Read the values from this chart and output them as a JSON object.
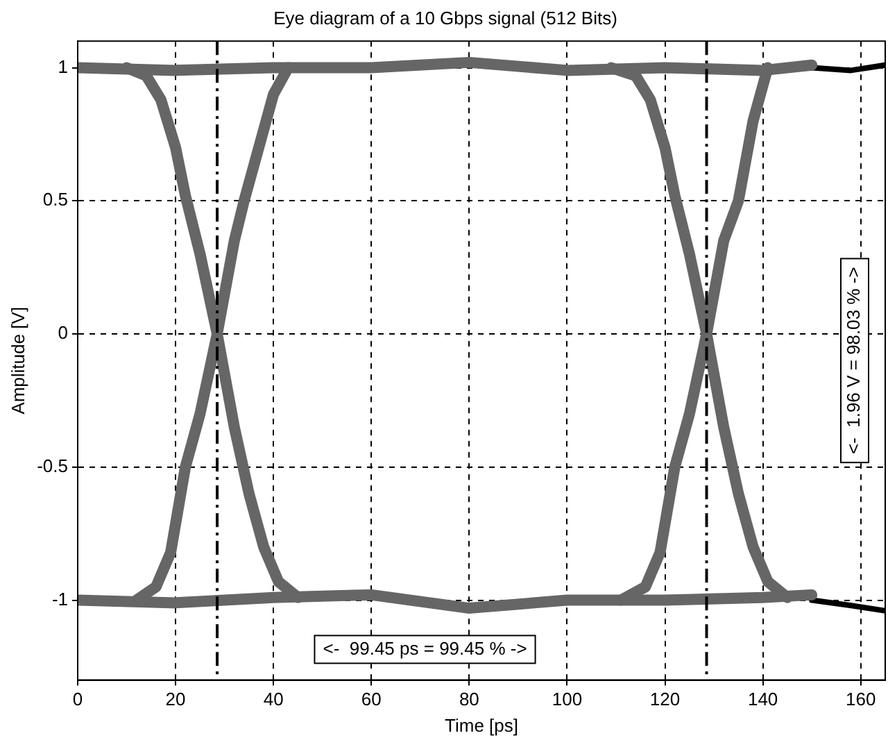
{
  "chart_data": {
    "type": "line",
    "title": "Eye diagram of a 10 Gbps signal (512 Bits)",
    "xlabel": "Time [ps]",
    "ylabel": "Amplitude [V]",
    "xlim": [
      0,
      165
    ],
    "ylim": [
      -1.3,
      1.1
    ],
    "xticks": [
      0,
      20,
      40,
      60,
      80,
      100,
      120,
      140,
      160
    ],
    "yticks": [
      -1,
      -0.5,
      0,
      0.5,
      1
    ],
    "grid": true,
    "legend": false,
    "marker": "none",
    "line_style": "solid",
    "series": [
      {
        "color": "#666666",
        "x": [
          0,
          20,
          40,
          60,
          80,
          100,
          120,
          140,
          150
        ],
        "values": [
          1,
          0.99,
          1,
          1,
          1.02,
          0.99,
          1,
          0.99,
          1.01
        ]
      },
      {
        "color": "#666666",
        "x": [
          0,
          20,
          40,
          60,
          80,
          100,
          120,
          140,
          150
        ],
        "values": [
          -1,
          -1.01,
          -0.99,
          -0.98,
          -1.03,
          -1,
          -1,
          -0.99,
          -0.98
        ]
      },
      {
        "color": "#666666",
        "x": [
          10,
          14,
          17,
          20,
          22,
          25,
          28.5,
          32,
          35,
          38,
          41,
          45
        ],
        "values": [
          1,
          0.97,
          0.88,
          0.7,
          0.52,
          0.3,
          0,
          -0.35,
          -0.6,
          -0.8,
          -0.93,
          -0.99
        ]
      },
      {
        "color": "#666666",
        "x": [
          12,
          16,
          19,
          22,
          25,
          28.5,
          32,
          34,
          37,
          40,
          43
        ],
        "values": [
          -1,
          -0.95,
          -0.82,
          -0.5,
          -0.3,
          0,
          0.35,
          0.5,
          0.7,
          0.9,
          1
        ]
      },
      {
        "color": "#666666",
        "x": [
          109,
          114,
          117,
          120,
          122,
          125,
          128.5,
          132,
          135,
          138,
          141,
          145
        ],
        "values": [
          1,
          0.97,
          0.88,
          0.7,
          0.52,
          0.3,
          0,
          -0.35,
          -0.6,
          -0.8,
          -0.93,
          -0.99
        ]
      },
      {
        "color": "#666666",
        "x": [
          111,
          116,
          119,
          122,
          125,
          128.5,
          132,
          135,
          138,
          141
        ],
        "values": [
          -1,
          -0.95,
          -0.82,
          -0.5,
          -0.3,
          0,
          0.35,
          0.5,
          0.8,
          1
        ]
      },
      {
        "color": "#000000",
        "x": [
          150,
          158,
          165
        ],
        "values": [
          1,
          0.99,
          1.01
        ]
      },
      {
        "color": "#000000",
        "x": [
          150,
          158,
          165
        ],
        "values": [
          -1,
          -1.02,
          -1.04
        ]
      }
    ],
    "ref_lines": [
      {
        "axis": "x",
        "value": 28.5,
        "color": "#000000",
        "line_style": "dashed"
      },
      {
        "axis": "x",
        "value": 128.5,
        "color": "#000000",
        "line_style": "dashed"
      }
    ],
    "annotations": [
      "<-  99.45 ps = 99.45 % ->",
      "<-  1.96 V = 98.03 % ->"
    ]
  }
}
